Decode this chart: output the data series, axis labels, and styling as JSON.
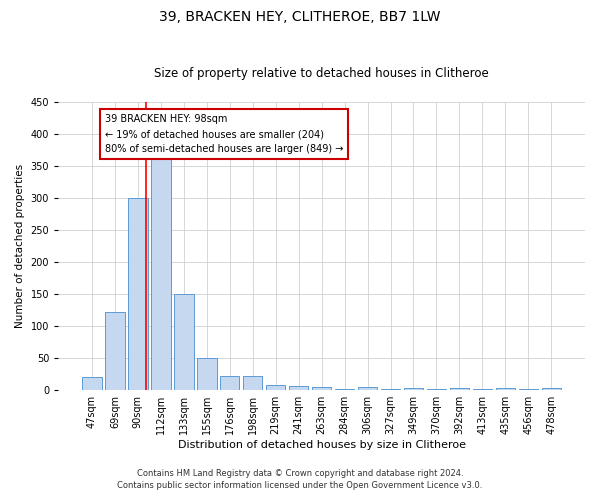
{
  "title": "39, BRACKEN HEY, CLITHEROE, BB7 1LW",
  "subtitle": "Size of property relative to detached houses in Clitheroe",
  "xlabel": "Distribution of detached houses by size in Clitheroe",
  "ylabel": "Number of detached properties",
  "footer_line1": "Contains HM Land Registry data © Crown copyright and database right 2024.",
  "footer_line2": "Contains public sector information licensed under the Open Government Licence v3.0.",
  "bar_labels": [
    "47sqm",
    "69sqm",
    "90sqm",
    "112sqm",
    "133sqm",
    "155sqm",
    "176sqm",
    "198sqm",
    "219sqm",
    "241sqm",
    "263sqm",
    "284sqm",
    "306sqm",
    "327sqm",
    "349sqm",
    "370sqm",
    "392sqm",
    "413sqm",
    "435sqm",
    "456sqm",
    "478sqm"
  ],
  "bar_values": [
    20,
    122,
    300,
    363,
    150,
    50,
    22,
    22,
    8,
    6,
    5,
    2,
    5,
    2,
    3,
    2,
    3,
    2,
    3,
    2,
    3
  ],
  "bar_color": "#c5d8f0",
  "bar_edge_color": "#5b9bd5",
  "red_line_index": 2.36,
  "annotation_text": "39 BRACKEN HEY: 98sqm\n← 19% of detached houses are smaller (204)\n80% of semi-detached houses are larger (849) →",
  "annotation_box_color": "#ffffff",
  "annotation_box_edge": "#cc0000",
  "ylim": [
    0,
    450
  ],
  "yticks": [
    0,
    50,
    100,
    150,
    200,
    250,
    300,
    350,
    400,
    450
  ],
  "background_color": "#ffffff",
  "grid_color": "#d0d0d0",
  "title_fontsize": 10,
  "subtitle_fontsize": 8.5,
  "ylabel_fontsize": 7.5,
  "xlabel_fontsize": 8,
  "tick_fontsize": 7,
  "annotation_fontsize": 7,
  "footer_fontsize": 6
}
